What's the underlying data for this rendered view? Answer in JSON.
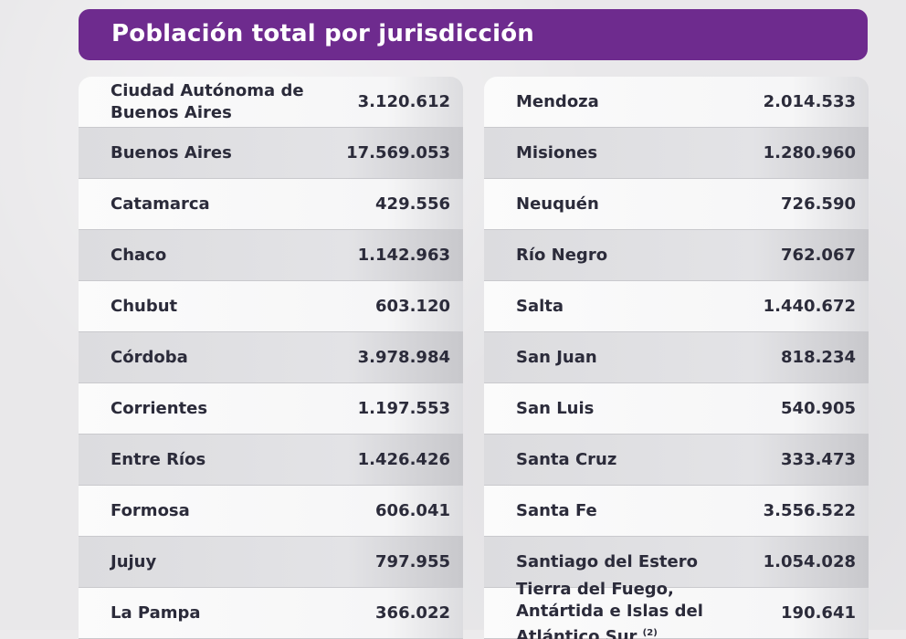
{
  "title": "Población total por jurisdicción",
  "accent_color": "#6e2b8e",
  "left_rows": [
    {
      "name": "Ciudad Autónoma de Buenos Aires",
      "value": "3.120.612"
    },
    {
      "name": "Buenos Aires",
      "value": "17.569.053"
    },
    {
      "name": "Catamarca",
      "value": "429.556"
    },
    {
      "name": "Chaco",
      "value": "1.142.963"
    },
    {
      "name": "Chubut",
      "value": "603.120"
    },
    {
      "name": "Córdoba",
      "value": "3.978.984"
    },
    {
      "name": "Corrientes",
      "value": "1.197.553"
    },
    {
      "name": "Entre Ríos",
      "value": "1.426.426"
    },
    {
      "name": "Formosa",
      "value": "606.041"
    },
    {
      "name": "Jujuy",
      "value": "797.955"
    },
    {
      "name": "La Pampa",
      "value": "366.022"
    }
  ],
  "right_rows": [
    {
      "name": "Mendoza",
      "value": "2.014.533"
    },
    {
      "name": "Misiones",
      "value": "1.280.960"
    },
    {
      "name": "Neuquén",
      "value": "726.590"
    },
    {
      "name": "Río Negro",
      "value": "762.067"
    },
    {
      "name": "Salta",
      "value": "1.440.672"
    },
    {
      "name": "San Juan",
      "value": "818.234"
    },
    {
      "name": "San Luis",
      "value": "540.905"
    },
    {
      "name": "Santa Cruz",
      "value": "333.473"
    },
    {
      "name": "Santa Fe",
      "value": "3.556.522"
    },
    {
      "name": "Santiago del Estero",
      "value": "1.054.028"
    },
    {
      "name": "Tierra del Fuego, Antártida e Islas del Atlántico Sur",
      "note": "(2)",
      "value": "190.641"
    }
  ]
}
